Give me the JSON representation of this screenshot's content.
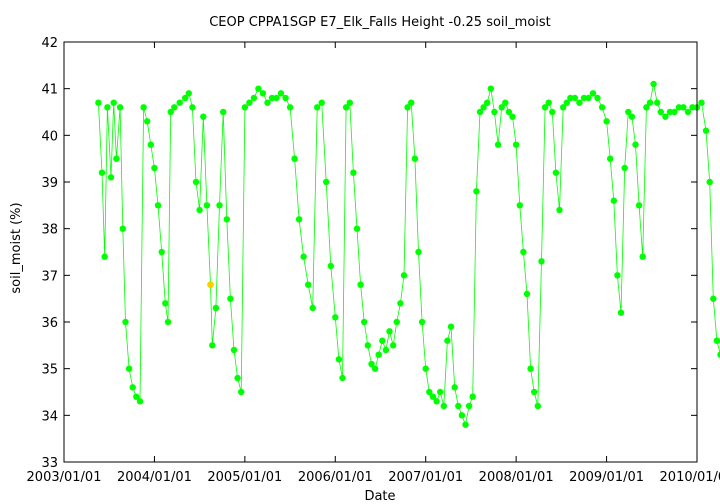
{
  "chart_data": {
    "type": "scatter",
    "title": "CEOP CPPA1SGP E7_Elk_Falls Height -0.25 soil_moist",
    "xlabel": "Date",
    "ylabel": "soil_moist (%)",
    "xlim": [
      "2003-01-01",
      "2010-01-01"
    ],
    "ylim": [
      33,
      42
    ],
    "x_ticks": [
      "2003/01/01",
      "2004/01/01",
      "2005/01/01",
      "2006/01/01",
      "2007/01/01",
      "2008/01/01",
      "2009/01/01",
      "2010/01/01"
    ],
    "y_ticks": [
      33,
      34,
      35,
      36,
      37,
      38,
      39,
      40,
      41,
      42
    ],
    "grid": false,
    "series": [
      {
        "name": "soil_moist",
        "color": "#00ff00",
        "points": [
          [
            2003.38,
            40.7
          ],
          [
            2003.42,
            39.2
          ],
          [
            2003.45,
            37.4
          ],
          [
            2003.48,
            40.6
          ],
          [
            2003.52,
            39.1
          ],
          [
            2003.55,
            40.7
          ],
          [
            2003.58,
            39.5
          ],
          [
            2003.62,
            40.6
          ],
          [
            2003.65,
            38.0
          ],
          [
            2003.68,
            36.0
          ],
          [
            2003.72,
            35.0
          ],
          [
            2003.76,
            34.6
          ],
          [
            2003.8,
            34.4
          ],
          [
            2003.84,
            34.3
          ],
          [
            2003.88,
            40.6
          ],
          [
            2003.92,
            40.3
          ],
          [
            2003.96,
            39.8
          ],
          [
            2004.0,
            39.3
          ],
          [
            2004.04,
            38.5
          ],
          [
            2004.08,
            37.5
          ],
          [
            2004.12,
            36.4
          ],
          [
            2004.15,
            36.0
          ],
          [
            2004.18,
            40.5
          ],
          [
            2004.22,
            40.6
          ],
          [
            2004.28,
            40.7
          ],
          [
            2004.34,
            40.8
          ],
          [
            2004.38,
            40.9
          ],
          [
            2004.42,
            40.6
          ],
          [
            2004.46,
            39.0
          ],
          [
            2004.5,
            38.4
          ],
          [
            2004.54,
            40.4
          ],
          [
            2004.58,
            38.5
          ],
          [
            2004.62,
            36.8
          ],
          [
            2004.64,
            35.5
          ],
          [
            2004.68,
            36.3
          ],
          [
            2004.72,
            38.5
          ],
          [
            2004.76,
            40.5
          ],
          [
            2004.8,
            38.2
          ],
          [
            2004.84,
            36.5
          ],
          [
            2004.88,
            35.4
          ],
          [
            2004.92,
            34.8
          ],
          [
            2004.96,
            34.5
          ],
          [
            2005.0,
            40.6
          ],
          [
            2005.05,
            40.7
          ],
          [
            2005.1,
            40.8
          ],
          [
            2005.15,
            41.0
          ],
          [
            2005.2,
            40.9
          ],
          [
            2005.25,
            40.7
          ],
          [
            2005.3,
            40.8
          ],
          [
            2005.35,
            40.8
          ],
          [
            2005.4,
            40.9
          ],
          [
            2005.45,
            40.8
          ],
          [
            2005.5,
            40.6
          ],
          [
            2005.55,
            39.5
          ],
          [
            2005.6,
            38.2
          ],
          [
            2005.65,
            37.4
          ],
          [
            2005.7,
            36.8
          ],
          [
            2005.75,
            36.3
          ],
          [
            2005.8,
            40.6
          ],
          [
            2005.85,
            40.7
          ],
          [
            2005.9,
            39.0
          ],
          [
            2005.95,
            37.2
          ],
          [
            2006.0,
            36.1
          ],
          [
            2006.04,
            35.2
          ],
          [
            2006.08,
            34.8
          ],
          [
            2006.12,
            40.6
          ],
          [
            2006.16,
            40.7
          ],
          [
            2006.2,
            39.2
          ],
          [
            2006.24,
            38.0
          ],
          [
            2006.28,
            36.8
          ],
          [
            2006.32,
            36.0
          ],
          [
            2006.36,
            35.5
          ],
          [
            2006.4,
            35.1
          ],
          [
            2006.44,
            35.0
          ],
          [
            2006.48,
            35.3
          ],
          [
            2006.52,
            35.6
          ],
          [
            2006.56,
            35.4
          ],
          [
            2006.6,
            35.8
          ],
          [
            2006.64,
            35.5
          ],
          [
            2006.68,
            36.0
          ],
          [
            2006.72,
            36.4
          ],
          [
            2006.76,
            37.0
          ],
          [
            2006.8,
            40.6
          ],
          [
            2006.84,
            40.7
          ],
          [
            2006.88,
            39.5
          ],
          [
            2006.92,
            37.5
          ],
          [
            2006.96,
            36.0
          ],
          [
            2007.0,
            35.0
          ],
          [
            2007.04,
            34.5
          ],
          [
            2007.08,
            34.4
          ],
          [
            2007.12,
            34.3
          ],
          [
            2007.16,
            34.5
          ],
          [
            2007.2,
            34.2
          ],
          [
            2007.24,
            35.6
          ],
          [
            2007.28,
            35.9
          ],
          [
            2007.32,
            34.6
          ],
          [
            2007.36,
            34.2
          ],
          [
            2007.4,
            34.0
          ],
          [
            2007.44,
            33.8
          ],
          [
            2007.48,
            34.2
          ],
          [
            2007.52,
            34.4
          ],
          [
            2007.56,
            38.8
          ],
          [
            2007.6,
            40.5
          ],
          [
            2007.64,
            40.6
          ],
          [
            2007.68,
            40.7
          ],
          [
            2007.72,
            41.0
          ],
          [
            2007.76,
            40.5
          ],
          [
            2007.8,
            39.8
          ],
          [
            2007.84,
            40.6
          ],
          [
            2007.88,
            40.7
          ],
          [
            2007.92,
            40.5
          ],
          [
            2007.96,
            40.4
          ],
          [
            2008.0,
            39.8
          ],
          [
            2008.04,
            38.5
          ],
          [
            2008.08,
            37.5
          ],
          [
            2008.12,
            36.6
          ],
          [
            2008.16,
            35.0
          ],
          [
            2008.2,
            34.5
          ],
          [
            2008.24,
            34.2
          ],
          [
            2008.28,
            37.3
          ],
          [
            2008.32,
            40.6
          ],
          [
            2008.36,
            40.7
          ],
          [
            2008.4,
            40.5
          ],
          [
            2008.44,
            39.2
          ],
          [
            2008.48,
            38.4
          ],
          [
            2008.52,
            40.6
          ],
          [
            2008.56,
            40.7
          ],
          [
            2008.6,
            40.8
          ],
          [
            2008.65,
            40.8
          ],
          [
            2008.7,
            40.7
          ],
          [
            2008.75,
            40.8
          ],
          [
            2008.8,
            40.8
          ],
          [
            2008.85,
            40.9
          ],
          [
            2008.9,
            40.8
          ],
          [
            2008.95,
            40.6
          ],
          [
            2009.0,
            40.3
          ],
          [
            2009.04,
            39.5
          ],
          [
            2009.08,
            38.6
          ],
          [
            2009.12,
            37.0
          ],
          [
            2009.16,
            36.2
          ],
          [
            2009.2,
            39.3
          ],
          [
            2009.24,
            40.5
          ],
          [
            2009.28,
            40.4
          ],
          [
            2009.32,
            39.8
          ],
          [
            2009.36,
            38.5
          ],
          [
            2009.4,
            37.4
          ],
          [
            2009.44,
            40.6
          ],
          [
            2009.48,
            40.7
          ],
          [
            2009.52,
            41.1
          ],
          [
            2009.56,
            40.7
          ],
          [
            2009.6,
            40.5
          ],
          [
            2009.65,
            40.4
          ],
          [
            2009.7,
            40.5
          ],
          [
            2009.75,
            40.5
          ],
          [
            2009.8,
            40.6
          ],
          [
            2009.85,
            40.6
          ],
          [
            2009.9,
            40.5
          ],
          [
            2009.95,
            40.6
          ],
          [
            2010.0,
            40.6
          ],
          [
            2010.05,
            40.7
          ],
          [
            2010.1,
            40.1
          ],
          [
            2010.14,
            39.0
          ],
          [
            2010.18,
            36.5
          ],
          [
            2010.22,
            35.6
          ],
          [
            2010.26,
            35.3
          ],
          [
            2010.3,
            40.4
          ],
          [
            2010.34,
            38.5
          ],
          [
            2010.38,
            36.0
          ],
          [
            2010.42,
            35.5
          ],
          [
            2010.46,
            38.2
          ],
          [
            2010.5,
            40.2
          ],
          [
            2010.54,
            40.4
          ],
          [
            2010.58,
            39.0
          ],
          [
            2010.62,
            37.6
          ],
          [
            2010.66,
            40.3
          ],
          [
            2010.7,
            40.4
          ],
          [
            2010.75,
            40.4
          ],
          [
            2010.8,
            40.5
          ],
          [
            2010.85,
            40.5
          ],
          [
            2010.9,
            40.5
          ],
          [
            2010.95,
            40.4
          ]
        ]
      },
      {
        "name": "flagged",
        "color": "#ffcc00",
        "points": [
          [
            2004.62,
            36.8
          ]
        ]
      }
    ]
  }
}
